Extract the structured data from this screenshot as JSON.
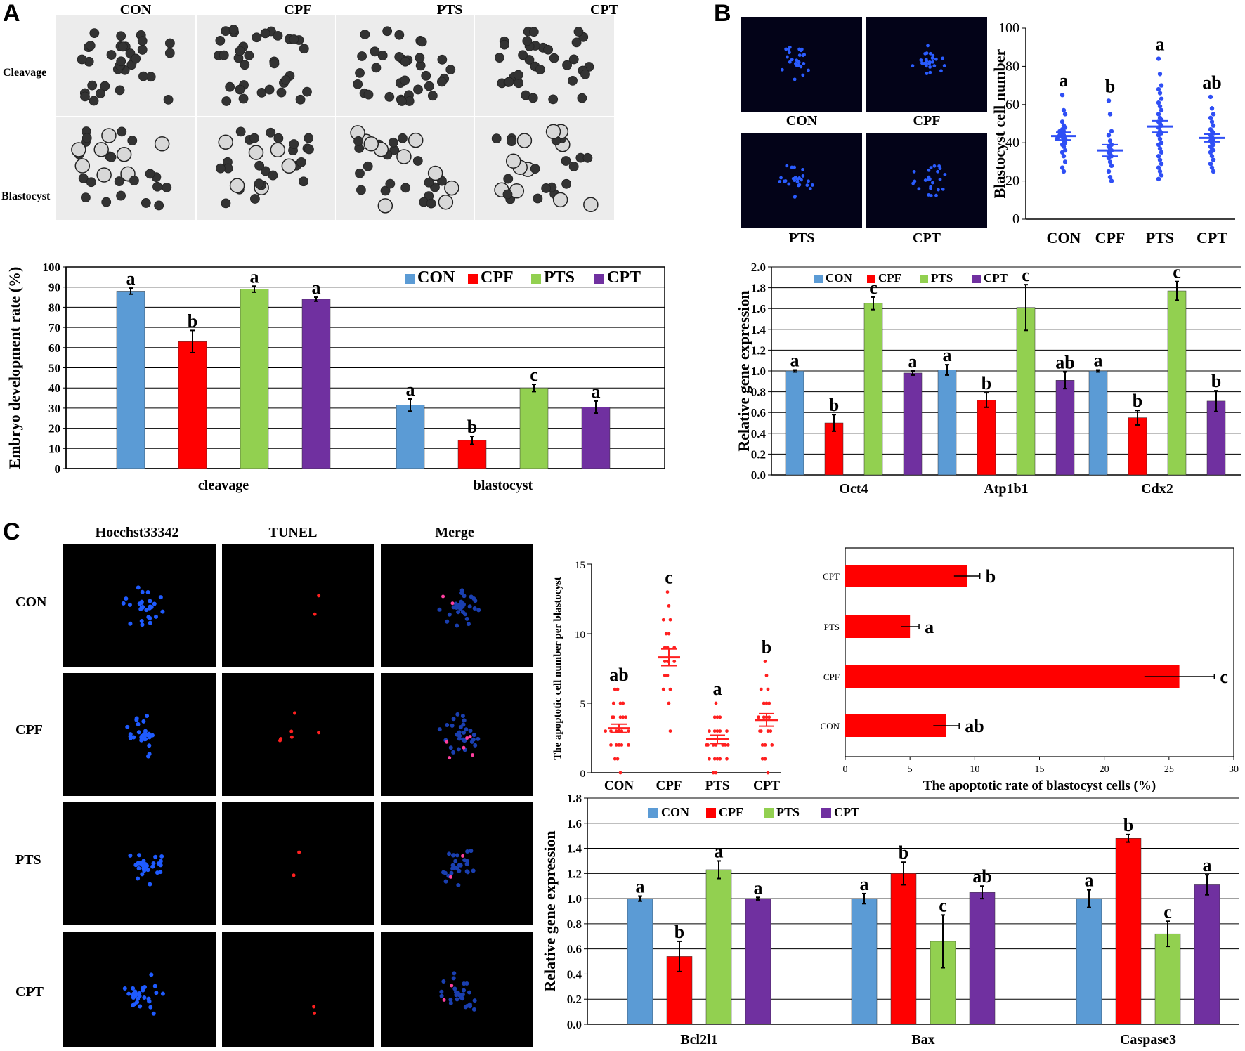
{
  "panels": {
    "A": "A",
    "B": "B",
    "C": "C"
  },
  "colors": {
    "CON": "#5b9bd5",
    "CPF": "#ff0000",
    "PTS": "#92d050",
    "CPT": "#7030a0",
    "dot_blue": "#2f4ff5",
    "dot_red": "#ff2020",
    "hbar": "#ff0000"
  },
  "panel_a": {
    "col_headers": [
      "CON",
      "CPF",
      "PTS",
      "CPT"
    ],
    "row_labels": [
      "Cleavage",
      "Blastocyst"
    ]
  },
  "panel_b": {
    "image_labels": [
      "CON",
      "CPF",
      "PTS",
      "CPT"
    ]
  },
  "panel_c": {
    "col_headers": [
      "Hoechst33342",
      "TUNEL",
      "Merge"
    ],
    "row_labels": [
      "CON",
      "CPF",
      "PTS",
      "CPT"
    ]
  },
  "chart_data": [
    {
      "id": "A-development",
      "type": "bar",
      "title": "",
      "xlabel": "",
      "ylabel": "Embryo development rate (%)",
      "ylim": [
        0,
        100
      ],
      "yticks": [
        0,
        10,
        20,
        30,
        40,
        50,
        60,
        70,
        80,
        90,
        100
      ],
      "grid": true,
      "legend": "top-right",
      "categories": [
        "cleavage",
        "blastocyst"
      ],
      "series": [
        {
          "name": "CON",
          "values": [
            88,
            31.5
          ],
          "errors": [
            1.5,
            3
          ],
          "labels": [
            "a",
            "a"
          ]
        },
        {
          "name": "CPF",
          "values": [
            63,
            14
          ],
          "errors": [
            5.5,
            2
          ],
          "labels": [
            "b",
            "b"
          ]
        },
        {
          "name": "PTS",
          "values": [
            89,
            40
          ],
          "errors": [
            1.5,
            1.8
          ],
          "labels": [
            "a",
            "c"
          ]
        },
        {
          "name": "CPT",
          "values": [
            84,
            30.5
          ],
          "errors": [
            1,
            3
          ],
          "labels": [
            "a",
            "a"
          ]
        }
      ]
    },
    {
      "id": "B-cellnumber",
      "type": "scatter",
      "title": "",
      "xlabel": "",
      "ylabel": "Blastocyst cell number",
      "ylim": [
        0,
        100
      ],
      "yticks": [
        0,
        20,
        40,
        60,
        80,
        100
      ],
      "categories": [
        "CON",
        "CPF",
        "PTS",
        "CPT"
      ],
      "means": [
        43.5,
        36,
        48.5,
        42.5
      ],
      "sem": [
        2,
        3,
        3,
        2
      ],
      "labels": [
        "a",
        "b",
        "a",
        "ab"
      ],
      "points": [
        [
          65,
          57,
          55,
          51,
          49,
          48,
          47,
          46,
          46,
          45,
          44,
          44,
          43,
          43,
          42,
          42,
          41,
          40,
          39,
          38,
          36,
          35,
          33,
          30,
          27,
          25
        ],
        [
          62,
          55,
          46,
          44,
          41,
          39,
          38,
          37,
          36,
          35,
          34,
          33,
          32,
          30,
          28,
          25,
          22,
          20
        ],
        [
          84,
          76,
          70,
          68,
          66,
          63,
          61,
          59,
          57,
          55,
          53,
          52,
          51,
          50,
          49,
          48,
          46,
          45,
          44,
          42,
          40,
          39,
          37,
          35,
          33,
          31,
          29,
          27,
          25,
          23,
          21
        ],
        [
          64,
          58,
          55,
          53,
          51,
          49,
          47,
          46,
          45,
          44,
          43,
          42,
          41,
          40,
          39,
          38,
          37,
          36,
          35,
          33,
          31,
          29,
          27,
          25
        ]
      ]
    },
    {
      "id": "B-gene",
      "type": "bar",
      "title": "",
      "xlabel": "",
      "ylabel": "Relative gene expression",
      "ylim": [
        0,
        2.0
      ],
      "yticks": [
        0.0,
        0.2,
        0.4,
        0.6,
        0.8,
        1.0,
        1.2,
        1.4,
        1.6,
        1.8,
        2.0
      ],
      "ytick_labels": [
        "0.0",
        "0.2",
        "0.4",
        "0.6",
        "0.8",
        "1.0",
        "1.2",
        "1.4",
        "1.6",
        "1.8",
        "2.0"
      ],
      "grid": true,
      "legend": "top-left",
      "categories": [
        "Oct4",
        "Atp1b1",
        "Cdx2"
      ],
      "series": [
        {
          "name": "CON",
          "values": [
            1.0,
            1.01,
            1.0
          ],
          "errors": [
            0.01,
            0.05,
            0.01
          ],
          "labels": [
            "a",
            "a",
            "a"
          ]
        },
        {
          "name": "CPF",
          "values": [
            0.5,
            0.72,
            0.55
          ],
          "errors": [
            0.08,
            0.07,
            0.07
          ],
          "labels": [
            "b",
            "b",
            "b"
          ]
        },
        {
          "name": "PTS",
          "values": [
            1.65,
            1.61,
            1.77
          ],
          "errors": [
            0.06,
            0.22,
            0.09
          ],
          "labels": [
            "c",
            "c",
            "c"
          ]
        },
        {
          "name": "CPT",
          "values": [
            0.98,
            0.91,
            0.71
          ],
          "errors": [
            0.02,
            0.08,
            0.1
          ],
          "labels": [
            "a",
            "ab",
            "b"
          ]
        }
      ]
    },
    {
      "id": "C-apoptotic-number",
      "type": "scatter",
      "title": "",
      "xlabel": "",
      "ylabel": "The apoptotic cell number per blastocyst",
      "ylim": [
        0,
        15
      ],
      "yticks": [
        0,
        5,
        10,
        15
      ],
      "categories": [
        "CON",
        "CPF",
        "PTS",
        "CPT"
      ],
      "means": [
        3.2,
        8.3,
        2.4,
        3.8
      ],
      "sem": [
        0.3,
        0.6,
        0.3,
        0.45
      ],
      "labels": [
        "ab",
        "c",
        "a",
        "b"
      ],
      "points": [
        [
          6,
          6,
          5,
          5,
          5,
          4,
          4,
          4,
          4,
          4,
          3,
          3,
          3,
          3,
          3,
          3,
          2,
          2,
          2,
          2,
          2,
          1,
          1,
          0
        ],
        [
          13,
          12,
          11,
          11,
          10,
          10,
          9,
          9,
          9,
          8,
          8,
          8,
          7,
          7,
          6,
          6,
          5,
          3
        ],
        [
          5,
          4,
          4,
          4,
          3,
          3,
          3,
          3,
          3,
          2,
          2,
          2,
          2,
          2,
          2,
          2,
          1,
          1,
          1,
          1,
          1,
          0,
          0
        ],
        [
          8,
          7,
          6,
          6,
          5,
          5,
          5,
          4,
          4,
          4,
          4,
          3,
          3,
          3,
          3,
          2,
          2,
          2,
          1,
          1,
          0
        ]
      ]
    },
    {
      "id": "C-apoptotic-rate",
      "type": "bar",
      "orientation": "horizontal",
      "title": "",
      "xlabel": "The apoptotic rate of blastocyst cells (%)",
      "ylabel": "",
      "xlim": [
        0,
        30
      ],
      "xticks": [
        0,
        5,
        10,
        15,
        20,
        25,
        30
      ],
      "categories": [
        "CPT",
        "PTS",
        "CPF",
        "CON"
      ],
      "values": [
        9.4,
        5.0,
        25.8,
        7.8
      ],
      "errors": [
        1.0,
        0.7,
        2.7,
        1.0
      ],
      "labels": [
        "b",
        "a",
        "c",
        "ab"
      ]
    },
    {
      "id": "C-gene",
      "type": "bar",
      "title": "",
      "xlabel": "",
      "ylabel": "Relative gene expression",
      "ylim": [
        0,
        1.8
      ],
      "yticks": [
        0.0,
        0.2,
        0.4,
        0.6,
        0.8,
        1.0,
        1.2,
        1.4,
        1.6,
        1.8
      ],
      "ytick_labels": [
        "0.0",
        "0.2",
        "0.4",
        "0.6",
        "0.8",
        "1.0",
        "1.2",
        "1.4",
        "1.6",
        "1.8"
      ],
      "grid": true,
      "legend": "top-left",
      "categories": [
        "Bcl2l1",
        "Bax",
        "Caspase3"
      ],
      "series": [
        {
          "name": "CON",
          "values": [
            1.0,
            1.0,
            1.0
          ],
          "errors": [
            0.02,
            0.04,
            0.07
          ],
          "labels": [
            "a",
            "a",
            "a"
          ]
        },
        {
          "name": "CPF",
          "values": [
            0.54,
            1.2,
            1.48
          ],
          "errors": [
            0.12,
            0.09,
            0.03
          ],
          "labels": [
            "b",
            "b",
            "b"
          ]
        },
        {
          "name": "PTS",
          "values": [
            1.23,
            0.66,
            0.72
          ],
          "errors": [
            0.07,
            0.21,
            0.1
          ],
          "labels": [
            "a",
            "c",
            "c"
          ]
        },
        {
          "name": "CPT",
          "values": [
            1.0,
            1.05,
            1.11
          ],
          "errors": [
            0.01,
            0.05,
            0.08
          ],
          "labels": [
            "a",
            "ab",
            "a"
          ]
        }
      ]
    }
  ]
}
